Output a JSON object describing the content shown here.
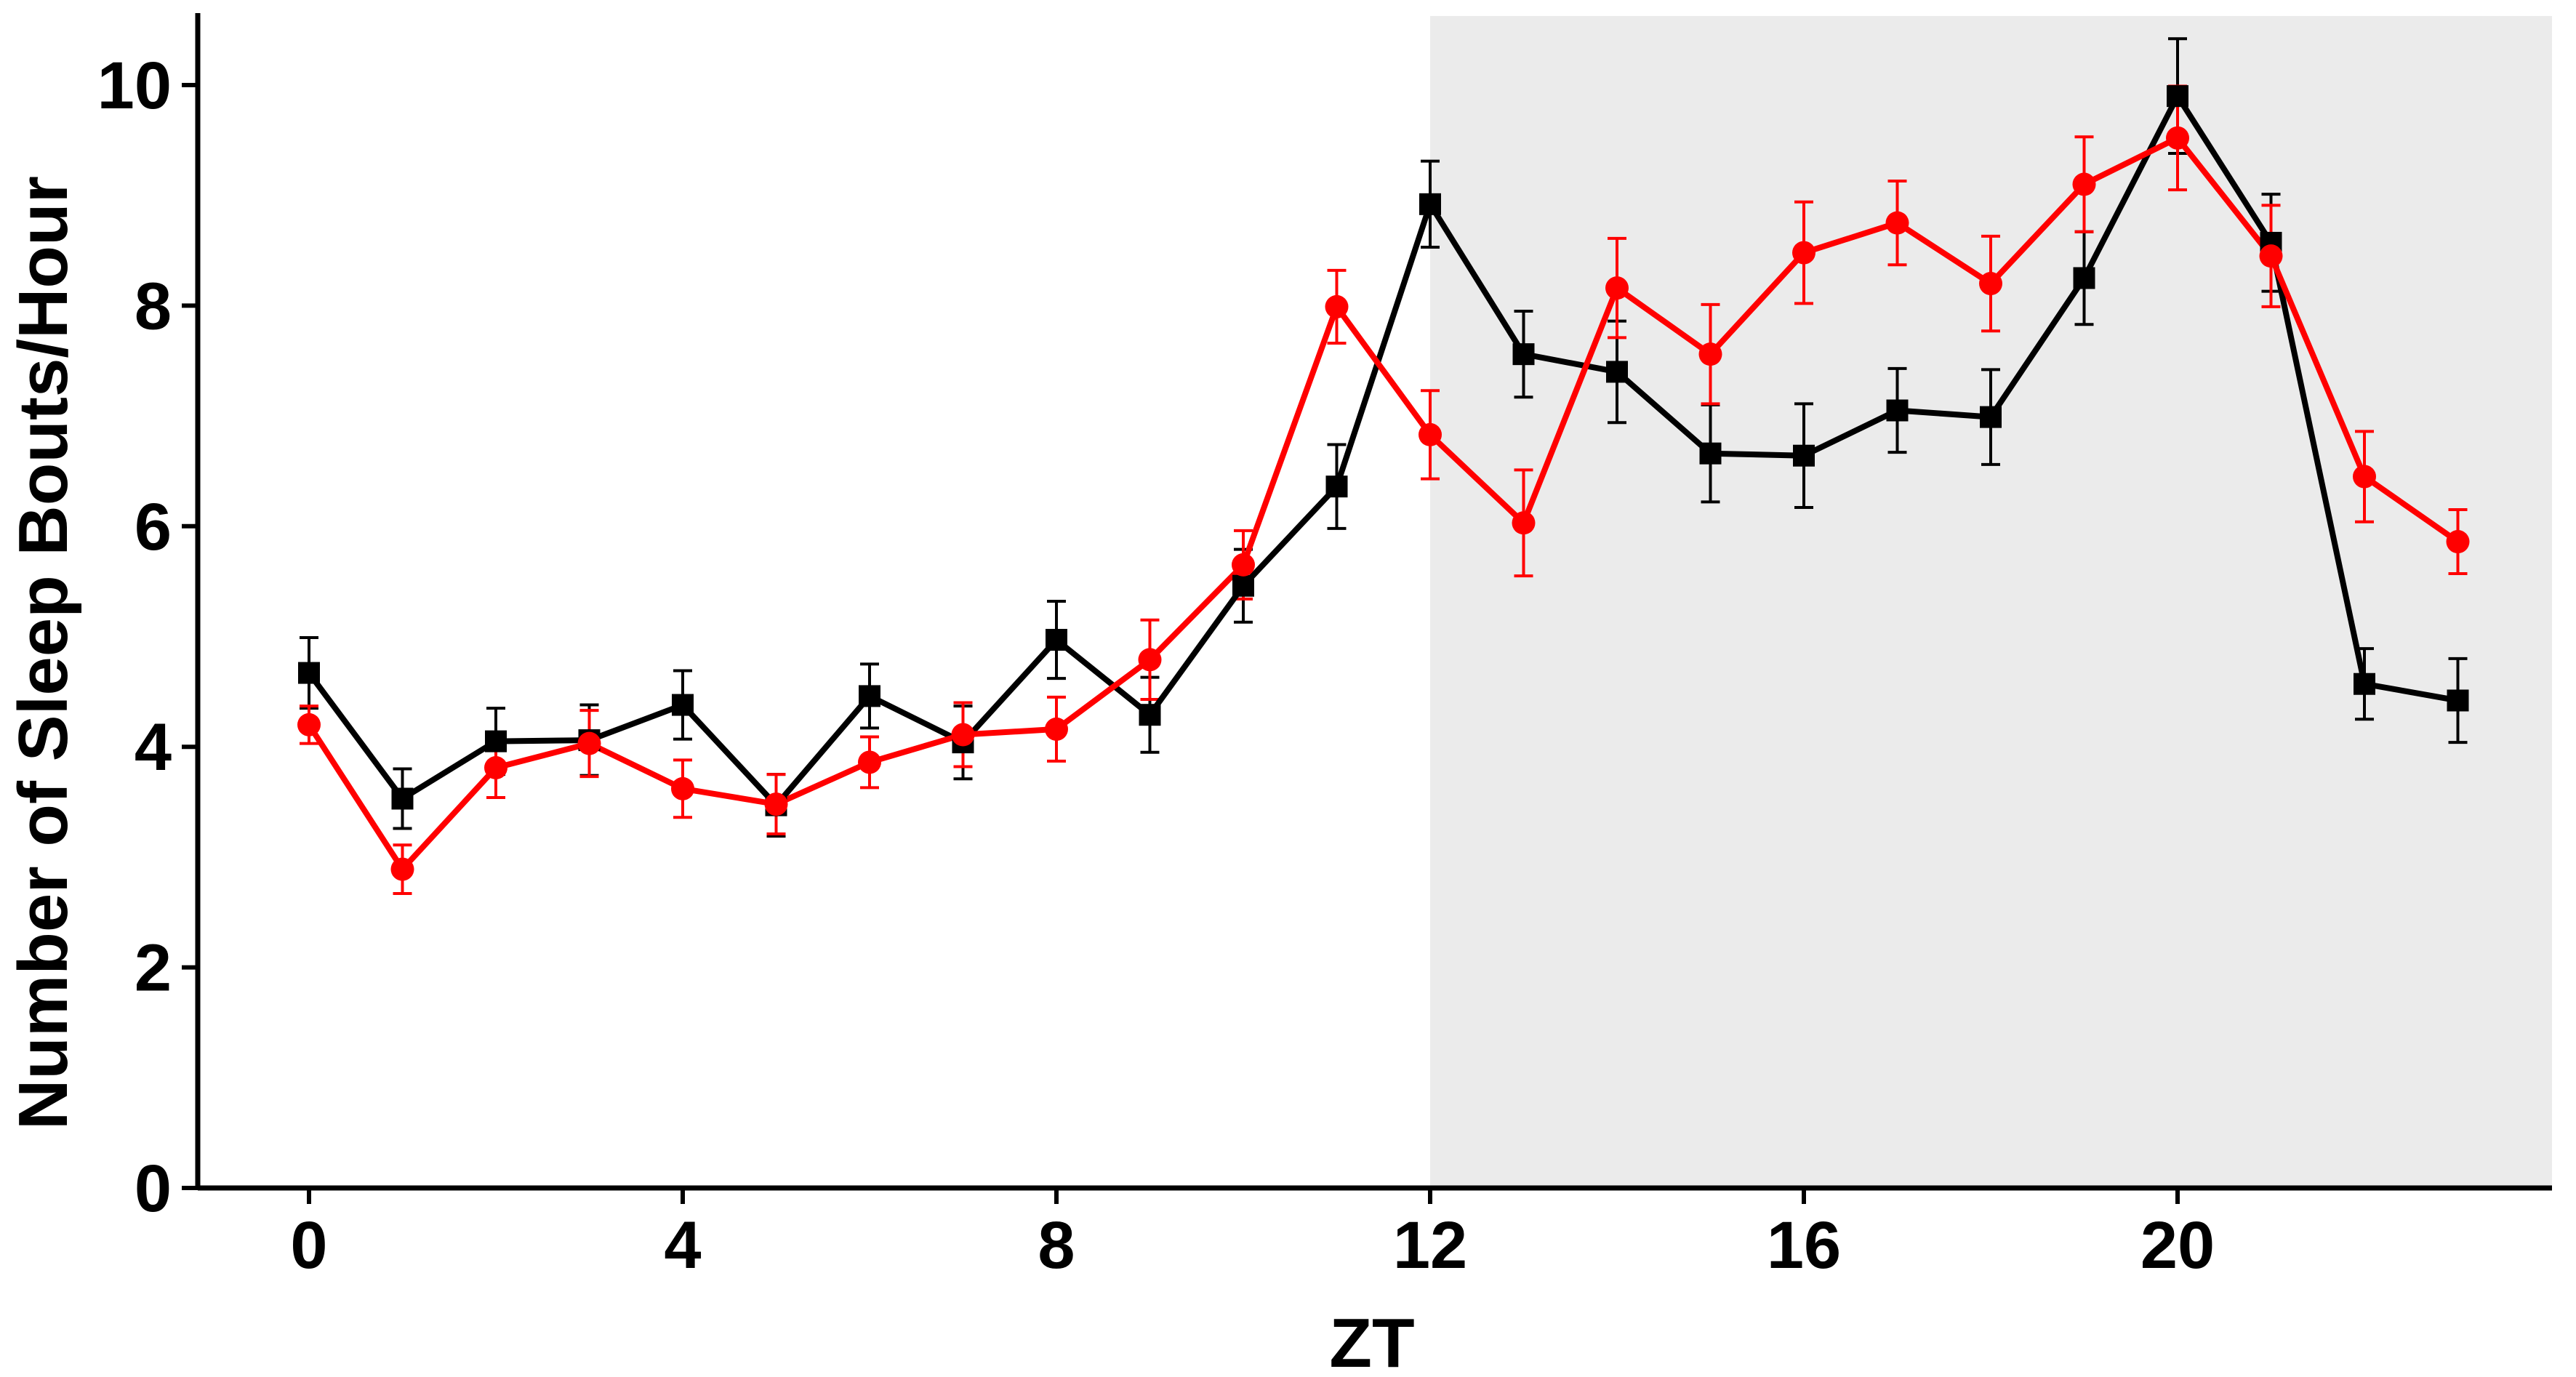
{
  "chart_data": {
    "type": "line",
    "title": "",
    "xlabel": "ZT",
    "ylabel": "Number of Sleep Bouts/Hour",
    "xlim": [
      -1.2,
      24.0
    ],
    "ylim": [
      0,
      10.6
    ],
    "xticks": [
      0,
      4,
      8,
      12,
      16,
      20
    ],
    "xtick_labels": [
      "0",
      "4",
      "8",
      "12",
      "16",
      "20"
    ],
    "yticks": [
      0,
      2,
      4,
      6,
      8,
      10
    ],
    "ytick_labels": [
      "0",
      "2",
      "4",
      "6",
      "8",
      "10"
    ],
    "grid": false,
    "legend": "none",
    "shaded_region": {
      "x_from": 12,
      "x_to": 24.0,
      "color": "#ebebeb"
    },
    "x": [
      0,
      1,
      2,
      3,
      4,
      5,
      6,
      7,
      8,
      9,
      10,
      11,
      12,
      13,
      14,
      15,
      16,
      17,
      18,
      19,
      20,
      21,
      22,
      23
    ],
    "series": [
      {
        "color": "#000000",
        "marker": "square",
        "values": [
          4.67,
          3.53,
          4.05,
          4.06,
          4.38,
          3.47,
          4.46,
          4.04,
          4.97,
          4.29,
          5.46,
          6.36,
          8.92,
          7.56,
          7.4,
          6.66,
          6.64,
          7.05,
          6.99,
          8.25,
          9.9,
          8.57,
          4.57,
          4.42
        ],
        "errors": [
          0.32,
          0.27,
          0.3,
          0.32,
          0.31,
          0.28,
          0.29,
          0.33,
          0.35,
          0.34,
          0.33,
          0.38,
          0.39,
          0.39,
          0.46,
          0.44,
          0.47,
          0.38,
          0.43,
          0.42,
          0.52,
          0.44,
          0.32,
          0.38
        ]
      },
      {
        "color": "#ff0000",
        "marker": "circle",
        "values": [
          4.2,
          2.89,
          3.81,
          4.03,
          3.62,
          3.48,
          3.86,
          4.11,
          4.16,
          4.79,
          5.65,
          7.99,
          6.83,
          6.03,
          8.16,
          7.56,
          8.48,
          8.75,
          8.2,
          9.1,
          9.52,
          8.45,
          6.45,
          5.86
        ],
        "errors": [
          0.17,
          0.22,
          0.27,
          0.3,
          0.26,
          0.27,
          0.23,
          0.29,
          0.29,
          0.36,
          0.31,
          0.33,
          0.4,
          0.48,
          0.45,
          0.45,
          0.46,
          0.38,
          0.43,
          0.43,
          0.47,
          0.46,
          0.41,
          0.29
        ]
      }
    ]
  }
}
